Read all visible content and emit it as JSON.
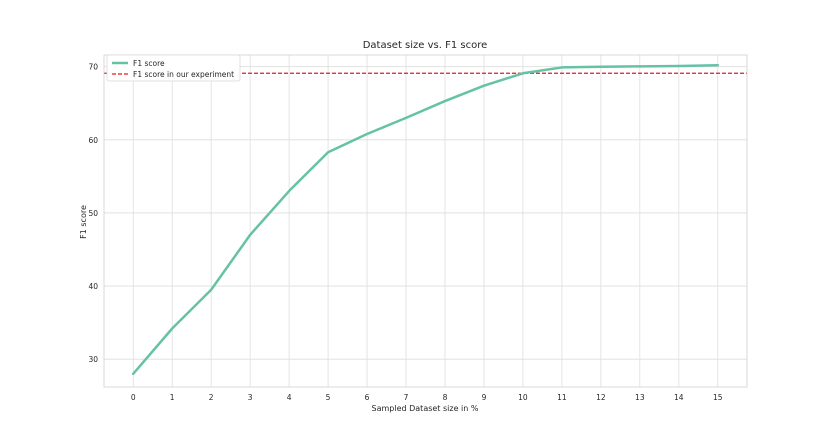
{
  "chart_data": {
    "type": "line",
    "title": "Dataset size vs. F1 score",
    "xlabel": "Sampled Dataset size in %",
    "ylabel": "F1 score",
    "x": [
      0,
      1,
      2,
      3,
      4,
      5,
      6,
      7,
      8,
      9,
      10,
      11,
      12,
      13,
      14,
      15
    ],
    "series": [
      {
        "name": "F1 score",
        "values": [
          28.0,
          34.2,
          39.5,
          47.0,
          53.0,
          58.3,
          60.8,
          63.0,
          65.3,
          67.4,
          69.1,
          69.9,
          70.0,
          70.05,
          70.1,
          70.2
        ],
        "color": "#66c2a5"
      }
    ],
    "reference_line": {
      "name": "F1 score in our experiment",
      "value": 69.1,
      "color": "#e41a1c",
      "style": "dashed"
    },
    "xlim": [
      -0.75,
      15.75
    ],
    "ylim": [
      26.2,
      71.6
    ],
    "xticks": [
      0,
      1,
      2,
      3,
      4,
      5,
      6,
      7,
      8,
      9,
      10,
      11,
      12,
      13,
      14,
      15
    ],
    "yticks": [
      30,
      40,
      50,
      60,
      70
    ],
    "grid": true,
    "legend_position": "top-left"
  }
}
